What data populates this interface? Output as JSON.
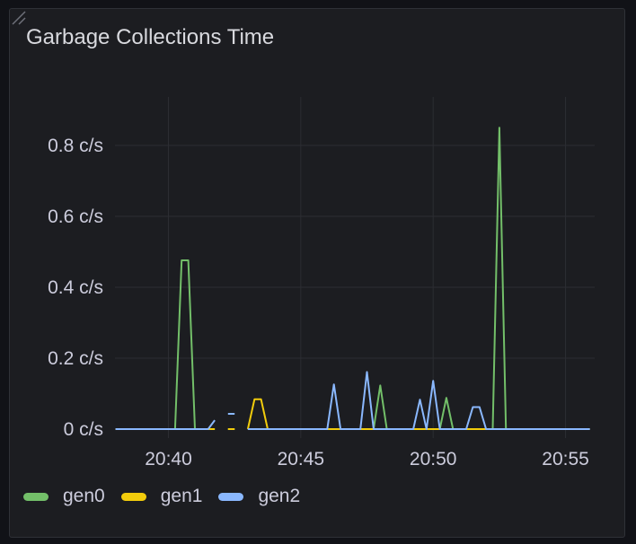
{
  "panel": {
    "title": "Garbage Collections Time"
  },
  "chart_data": {
    "type": "line",
    "title": "Garbage Collections Time",
    "y_unit": "c/s",
    "ylim": [
      0,
      0.9
    ],
    "y_ticks": [
      "0 c/s",
      "0.2 c/s",
      "0.4 c/s",
      "0.6 c/s",
      "0.8 c/s"
    ],
    "y_tick_values": [
      0,
      0.2,
      0.4,
      0.6,
      0.8
    ],
    "x_ticks": [
      "20:40",
      "20:45",
      "20:50",
      "20:55"
    ],
    "xlim": [
      "20:38:00",
      "20:55:55"
    ],
    "grid": true,
    "legend": "bottom",
    "series": [
      {
        "name": "gen0",
        "color": "#73BF69",
        "points": [
          [
            "20:38:00",
            0
          ],
          [
            "20:40:15",
            0
          ],
          [
            "20:40:30",
            0.476
          ],
          [
            "20:40:45",
            0.476
          ],
          [
            "20:41:00",
            0
          ],
          [
            "20:41:45",
            0
          ],
          null,
          [
            "20:42:15",
            0
          ],
          [
            "20:42:30",
            0
          ],
          null,
          [
            "20:43:00",
            0
          ],
          [
            "20:47:45",
            0
          ],
          [
            "20:48:00",
            0.123
          ],
          [
            "20:48:15",
            0
          ],
          [
            "20:50:15",
            0
          ],
          [
            "20:50:30",
            0.088
          ],
          [
            "20:50:45",
            0
          ],
          [
            "20:52:15",
            0
          ],
          [
            "20:52:30",
            0.85
          ],
          [
            "20:52:45",
            0
          ],
          [
            "20:55:55",
            0
          ]
        ]
      },
      {
        "name": "gen1",
        "color": "#F2CC0C",
        "points": [
          [
            "20:38:00",
            0
          ],
          [
            "20:41:45",
            0
          ],
          null,
          [
            "20:42:15",
            0
          ],
          [
            "20:42:30",
            0
          ],
          null,
          [
            "20:43:00",
            0
          ],
          [
            "20:43:15",
            0.084
          ],
          [
            "20:43:30",
            0.084
          ],
          [
            "20:43:45",
            0
          ],
          [
            "20:55:55",
            0
          ]
        ]
      },
      {
        "name": "gen2",
        "color": "#8AB8FF",
        "points": [
          [
            "20:38:00",
            0
          ],
          [
            "20:41:30",
            0
          ],
          [
            "20:41:45",
            0.025
          ],
          null,
          [
            "20:42:15",
            0.043
          ],
          [
            "20:42:30",
            0.043
          ],
          null,
          [
            "20:43:00",
            0
          ],
          [
            "20:46:00",
            0
          ],
          [
            "20:46:15",
            0.126
          ],
          [
            "20:46:30",
            0
          ],
          [
            "20:47:15",
            0
          ],
          [
            "20:47:30",
            0.161
          ],
          [
            "20:47:45",
            0
          ],
          [
            "20:49:15",
            0
          ],
          [
            "20:49:30",
            0.083
          ],
          [
            "20:49:45",
            0
          ],
          [
            "20:50:00",
            0.136
          ],
          [
            "20:50:15",
            0
          ],
          [
            "20:51:15",
            0
          ],
          [
            "20:51:30",
            0.062
          ],
          [
            "20:51:45",
            0.062
          ],
          [
            "20:52:00",
            0
          ],
          [
            "20:55:55",
            0
          ]
        ]
      }
    ]
  }
}
